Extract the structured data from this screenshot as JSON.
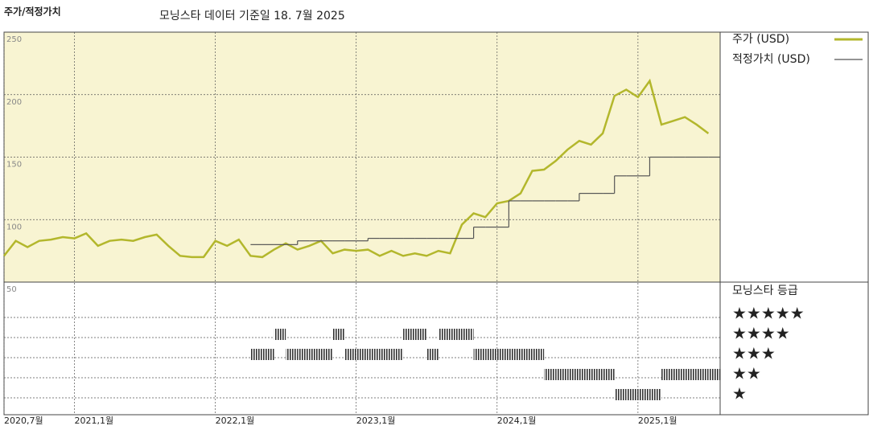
{
  "chart_data": {
    "type": "line",
    "title": "주가/적정가치",
    "subtitle": "모닝스타 데이터 기준일 18. 7월 2025",
    "x": [
      "2020-07",
      "2020-08",
      "2020-09",
      "2020-10",
      "2020-11",
      "2020-12",
      "2021-01",
      "2021-02",
      "2021-03",
      "2021-04",
      "2021-05",
      "2021-06",
      "2021-07",
      "2021-08",
      "2021-09",
      "2021-10",
      "2021-11",
      "2021-12",
      "2022-01",
      "2022-02",
      "2022-03",
      "2022-04",
      "2022-05",
      "2022-06",
      "2022-07",
      "2022-08",
      "2022-09",
      "2022-10",
      "2022-11",
      "2022-12",
      "2023-01",
      "2023-02",
      "2023-03",
      "2023-04",
      "2023-05",
      "2023-06",
      "2023-07",
      "2023-08",
      "2023-09",
      "2023-10",
      "2023-11",
      "2023-12",
      "2024-01",
      "2024-02",
      "2024-03",
      "2024-04",
      "2024-05",
      "2024-06",
      "2024-07",
      "2024-08",
      "2024-09",
      "2024-10",
      "2024-11",
      "2024-12",
      "2025-01",
      "2025-02",
      "2025-03",
      "2025-04",
      "2025-05",
      "2025-06",
      "2025-07"
    ],
    "series": [
      {
        "name": "주가 (USD)",
        "color": "#b3b72c",
        "values": [
          71,
          83,
          78,
          83,
          84,
          86,
          85,
          89,
          79,
          83,
          84,
          83,
          86,
          88,
          79,
          71,
          70,
          70,
          83,
          79,
          84,
          71,
          70,
          76,
          81,
          76,
          79,
          83,
          73,
          76,
          75,
          76,
          71,
          75,
          71,
          73,
          71,
          75,
          73,
          96,
          105,
          102,
          113,
          115,
          121,
          139,
          140,
          147,
          156,
          163,
          160,
          169,
          199,
          204,
          198,
          211,
          176,
          179,
          182,
          176,
          169
        ]
      },
      {
        "name": "적정가치 (USD)",
        "color": "#555555",
        "values": [
          null,
          null,
          null,
          null,
          null,
          null,
          null,
          null,
          null,
          null,
          null,
          null,
          null,
          null,
          null,
          null,
          null,
          null,
          null,
          null,
          null,
          80,
          80,
          80,
          80,
          83,
          83,
          83,
          83,
          83,
          83,
          85,
          85,
          85,
          85,
          85,
          85,
          85,
          85,
          85,
          94,
          94,
          94,
          115,
          115,
          115,
          115,
          115,
          115,
          121,
          121,
          121,
          135,
          135,
          135,
          150,
          150,
          150,
          150,
          150,
          150
        ]
      }
    ],
    "ratings_title": "모닝스타 등급",
    "rating_labels": [
      {
        "value": 5,
        "label": "★★★★★"
      },
      {
        "value": 4,
        "label": "★★★★"
      },
      {
        "value": 3,
        "label": "★★★"
      },
      {
        "value": 2,
        "label": "★★"
      },
      {
        "value": 1,
        "label": "★"
      }
    ],
    "ratings": [
      null,
      null,
      null,
      null,
      null,
      null,
      null,
      null,
      null,
      null,
      null,
      null,
      null,
      null,
      null,
      null,
      null,
      null,
      null,
      null,
      null,
      3,
      3,
      4,
      3,
      3,
      3,
      3,
      4,
      3,
      3,
      3,
      3,
      3,
      4,
      4,
      3,
      4,
      4,
      4,
      3,
      3,
      3,
      3,
      3,
      3,
      2,
      2,
      2,
      2,
      2,
      2,
      1,
      1,
      1,
      1,
      2,
      2,
      2,
      2,
      2
    ],
    "xlim": [
      "2020-07",
      "2025-08"
    ],
    "xticks": [
      {
        "value": "2020-07",
        "label": "2020,7월"
      },
      {
        "value": "2021-01",
        "label": "2021,1월"
      },
      {
        "value": "2022-01",
        "label": "2022,1월"
      },
      {
        "value": "2023-01",
        "label": "2023,1월"
      },
      {
        "value": "2024-01",
        "label": "2024,1월"
      },
      {
        "value": "2025-01",
        "label": "2025,1월"
      }
    ],
    "ylim": [
      50,
      250
    ],
    "yticks": [
      50,
      100,
      150,
      200,
      250
    ],
    "grid": true
  }
}
